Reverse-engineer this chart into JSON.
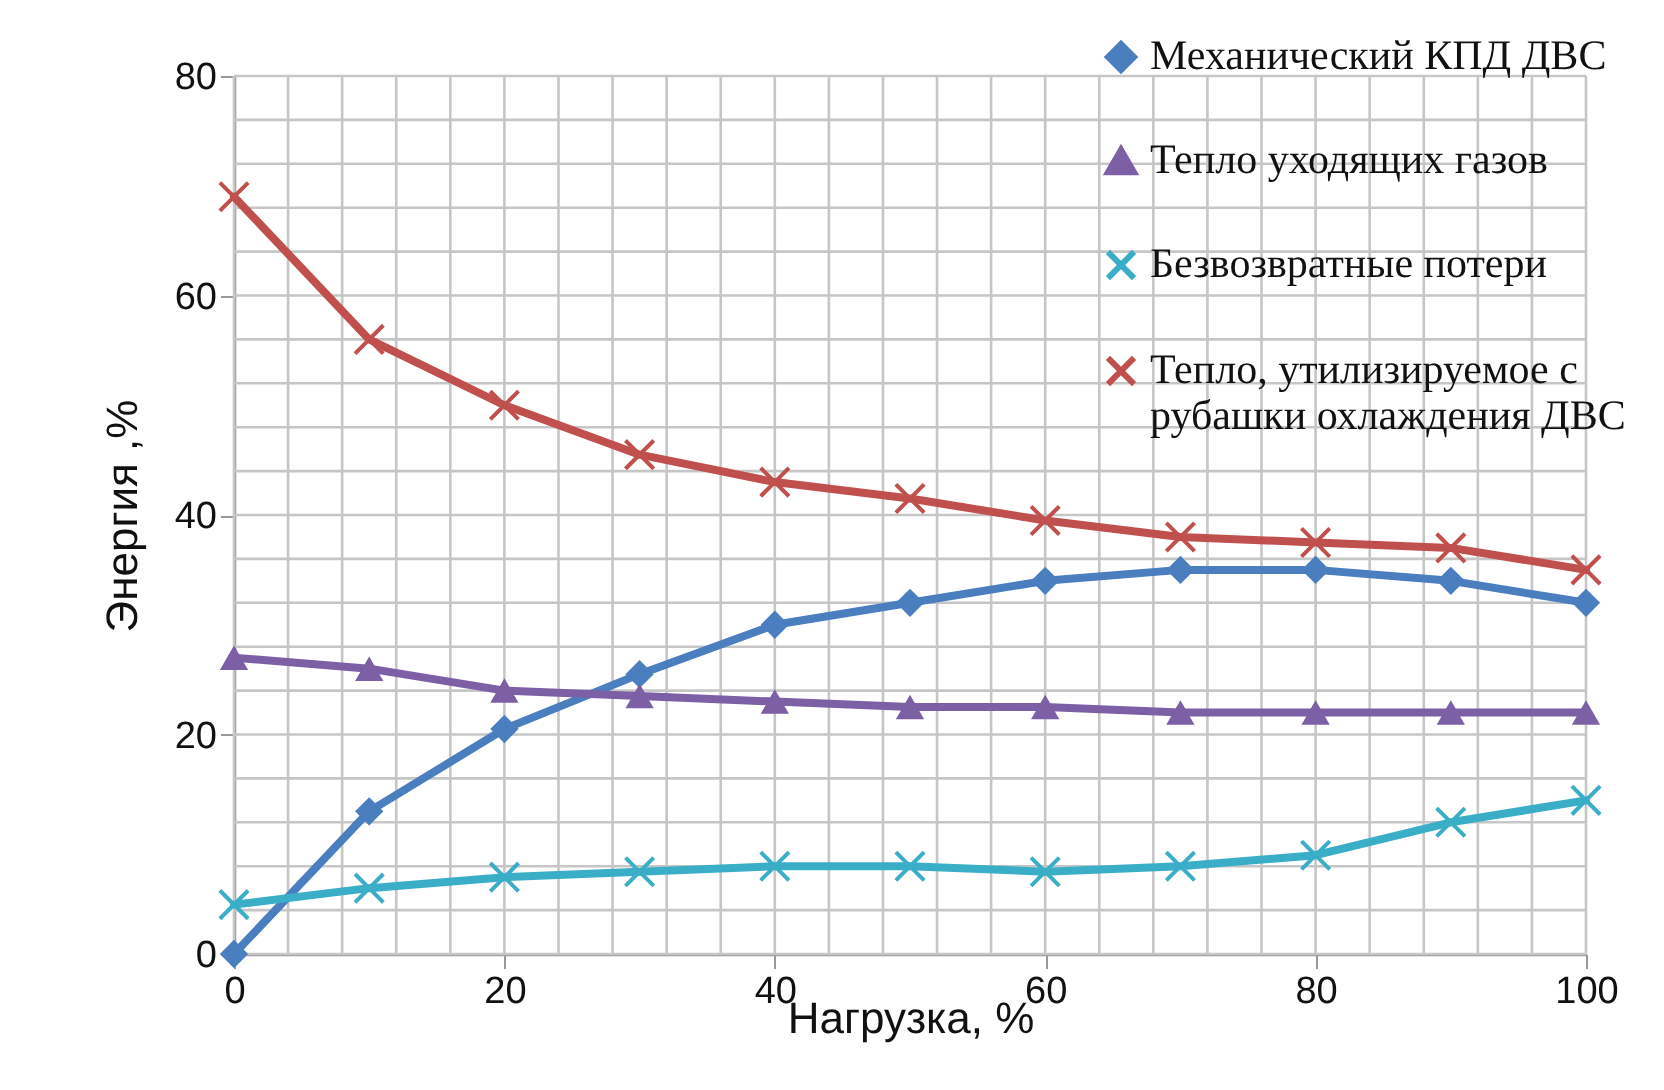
{
  "chart_data": {
    "type": "line",
    "xlabel": "Нагрузка, %",
    "ylabel": "Энергия ,%",
    "x": [
      0,
      10,
      20,
      30,
      40,
      50,
      60,
      70,
      80,
      90,
      100
    ],
    "xlim": [
      0,
      100
    ],
    "ylim": [
      0,
      80
    ],
    "xticks": [
      0,
      {
        "value": 4,
        "label": null
      },
      {
        "value": 8,
        "label": null
      },
      {
        "value": 12,
        "label": null
      },
      {
        "value": 16,
        "label": null
      },
      20,
      {
        "value": 24,
        "label": null
      },
      {
        "value": 28,
        "label": null
      },
      {
        "value": 32,
        "label": null
      },
      {
        "value": 36,
        "label": null
      },
      40,
      {
        "value": 44,
        "label": null
      },
      {
        "value": 48,
        "label": null
      },
      {
        "value": 52,
        "label": null
      },
      {
        "value": 56,
        "label": null
      },
      60,
      {
        "value": 64,
        "label": null
      },
      {
        "value": 68,
        "label": null
      },
      {
        "value": 72,
        "label": null
      },
      {
        "value": 76,
        "label": null
      },
      80,
      {
        "value": 84,
        "label": null
      },
      {
        "value": 88,
        "label": null
      },
      {
        "value": 92,
        "label": null
      },
      {
        "value": 96,
        "label": null
      },
      100
    ],
    "yticks": [
      0,
      {
        "value": 4,
        "label": null
      },
      {
        "value": 8,
        "label": null
      },
      {
        "value": 12,
        "label": null
      },
      {
        "value": 16,
        "label": null
      },
      20,
      {
        "value": 24,
        "label": null
      },
      {
        "value": 28,
        "label": null
      },
      {
        "value": 32,
        "label": null
      },
      {
        "value": 36,
        "label": null
      },
      40,
      {
        "value": 44,
        "label": null
      },
      {
        "value": 48,
        "label": null
      },
      {
        "value": 52,
        "label": null
      },
      {
        "value": 56,
        "label": null
      },
      60,
      {
        "value": 64,
        "label": null
      },
      {
        "value": 68,
        "label": null
      },
      {
        "value": 72,
        "label": null
      },
      {
        "value": 76,
        "label": null
      },
      80
    ],
    "grid": true,
    "legend": "top right",
    "line_style": "solid",
    "series": [
      {
        "name": "Механический КПД ДВС",
        "color": "#4a7ebf",
        "marker": "diamond",
        "values": [
          0,
          13,
          20.5,
          25.5,
          30,
          32,
          34,
          35,
          35,
          34,
          32
        ]
      },
      {
        "name": "Тепло уходящих газов",
        "color": "#7d5fa5",
        "marker": "triangle",
        "values": [
          27,
          26,
          24,
          23.5,
          23,
          22.5,
          22.5,
          22,
          22,
          22,
          22
        ]
      },
      {
        "name": "Безвозвратные потери",
        "color": "#3aaec6",
        "marker": "cross",
        "values": [
          4.5,
          6,
          7,
          7.5,
          8,
          8,
          7.5,
          8,
          9,
          12,
          14
        ]
      },
      {
        "name": "Тепло, утилизируемое с рубашки охлаждения ДВС",
        "color": "#c0504d",
        "marker": "cross",
        "values": [
          69,
          56,
          50,
          45.5,
          43,
          41.5,
          39.5,
          38,
          37.5,
          37,
          35
        ]
      }
    ]
  }
}
